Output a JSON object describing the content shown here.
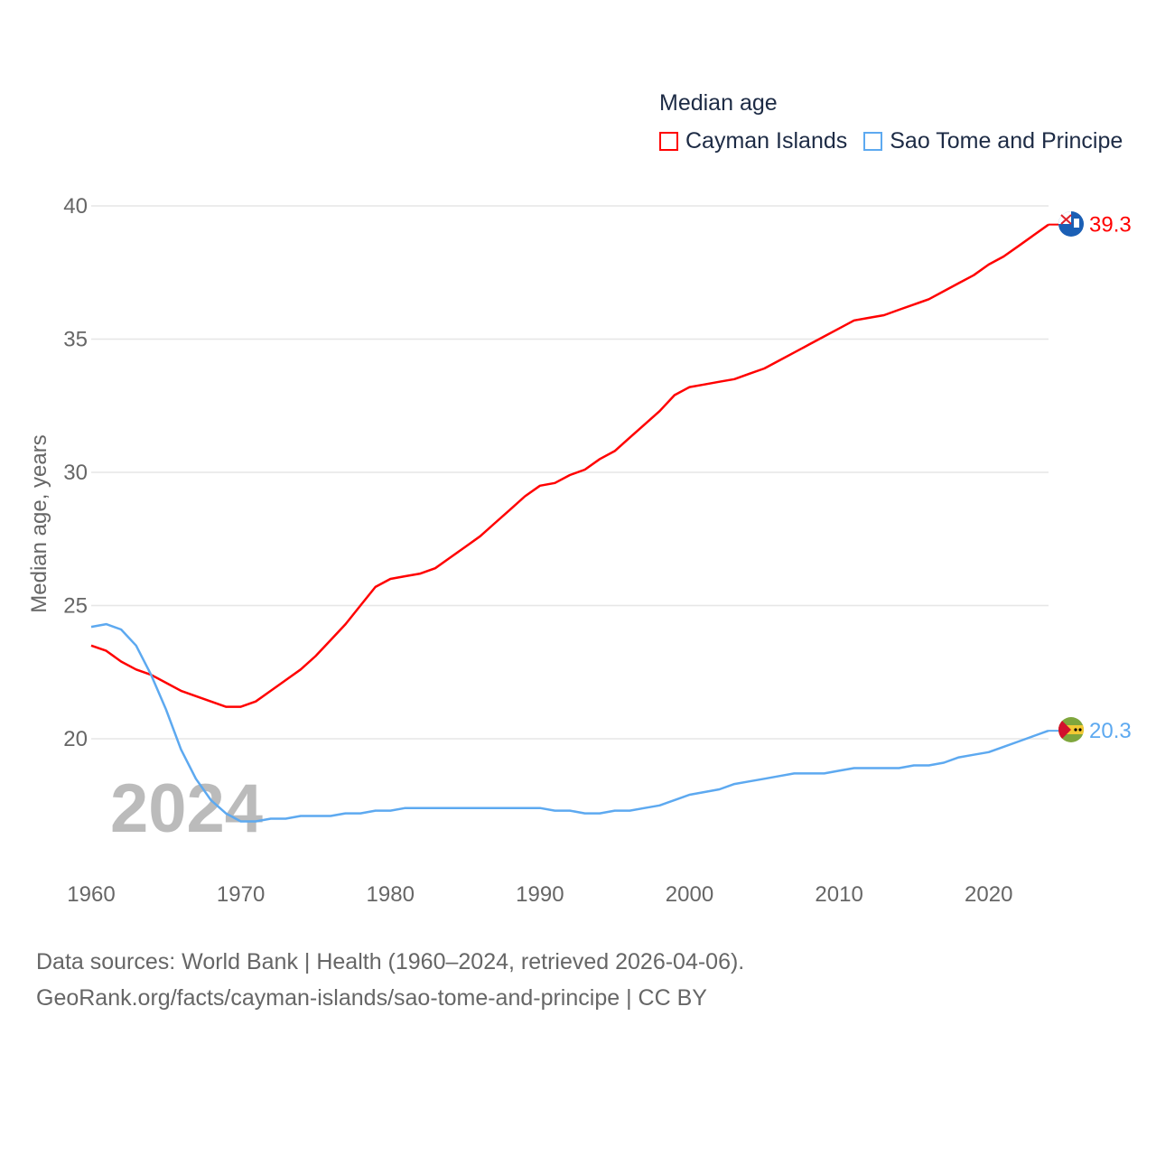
{
  "chart_data": {
    "type": "line",
    "title": "Median age",
    "xlabel": "",
    "ylabel": "Median age, years",
    "xlim": [
      1960,
      2024
    ],
    "ylim": [
      15,
      40
    ],
    "x_ticks": [
      "1960",
      "1970",
      "1980",
      "1990",
      "2000",
      "2010",
      "2020"
    ],
    "y_ticks": [
      "20",
      "25",
      "30",
      "35",
      "40"
    ],
    "grid": true,
    "legend_placement": "top-right",
    "year_label": "2024",
    "x": [
      1960,
      1961,
      1962,
      1963,
      1964,
      1965,
      1966,
      1967,
      1968,
      1969,
      1970,
      1971,
      1972,
      1973,
      1974,
      1975,
      1976,
      1977,
      1978,
      1979,
      1980,
      1981,
      1982,
      1983,
      1984,
      1985,
      1986,
      1987,
      1988,
      1989,
      1990,
      1991,
      1992,
      1993,
      1994,
      1995,
      1996,
      1997,
      1998,
      1999,
      2000,
      2001,
      2002,
      2003,
      2004,
      2005,
      2006,
      2007,
      2008,
      2009,
      2010,
      2011,
      2012,
      2013,
      2014,
      2015,
      2016,
      2017,
      2018,
      2019,
      2020,
      2021,
      2022,
      2023,
      2024
    ],
    "series": [
      {
        "name": "Cayman Islands",
        "color": "#ff0000",
        "end_label": "39.3",
        "values": [
          23.5,
          23.3,
          22.9,
          22.6,
          22.4,
          22.1,
          21.8,
          21.6,
          21.4,
          21.2,
          21.2,
          21.4,
          21.8,
          22.2,
          22.6,
          23.1,
          23.7,
          24.3,
          25.0,
          25.7,
          26.0,
          26.1,
          26.2,
          26.4,
          26.8,
          27.2,
          27.6,
          28.1,
          28.6,
          29.1,
          29.5,
          29.6,
          29.9,
          30.1,
          30.5,
          30.8,
          31.3,
          31.8,
          32.3,
          32.9,
          33.2,
          33.3,
          33.4,
          33.5,
          33.7,
          33.9,
          34.2,
          34.5,
          34.8,
          35.1,
          35.4,
          35.7,
          35.8,
          35.9,
          36.1,
          36.3,
          36.5,
          36.8,
          37.1,
          37.4,
          37.8,
          38.1,
          38.5,
          38.9,
          39.3
        ]
      },
      {
        "name": "Sao Tome and Principe",
        "color": "#5da9f0",
        "end_label": "20.3",
        "values": [
          24.2,
          24.3,
          24.1,
          23.5,
          22.4,
          21.1,
          19.6,
          18.5,
          17.7,
          17.2,
          16.9,
          16.9,
          17.0,
          17.0,
          17.1,
          17.1,
          17.1,
          17.2,
          17.2,
          17.3,
          17.3,
          17.4,
          17.4,
          17.4,
          17.4,
          17.4,
          17.4,
          17.4,
          17.4,
          17.4,
          17.4,
          17.3,
          17.3,
          17.2,
          17.2,
          17.3,
          17.3,
          17.4,
          17.5,
          17.7,
          17.9,
          18.0,
          18.1,
          18.3,
          18.4,
          18.5,
          18.6,
          18.7,
          18.7,
          18.7,
          18.8,
          18.9,
          18.9,
          18.9,
          18.9,
          19.0,
          19.0,
          19.1,
          19.3,
          19.4,
          19.5,
          19.7,
          19.9,
          20.1,
          20.3
        ]
      }
    ]
  },
  "footer": {
    "line1": "Data sources: World Bank | Health (1960–2024, retrieved 2026-04-06).",
    "line2": "GeoRank.org/facts/cayman-islands/sao-tome-and-principe | CC BY"
  }
}
